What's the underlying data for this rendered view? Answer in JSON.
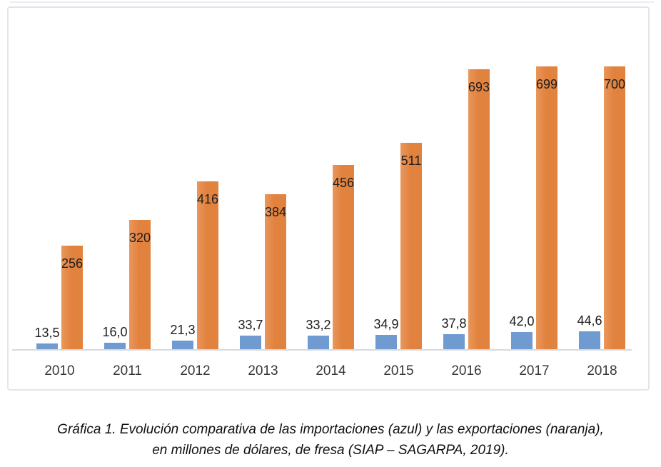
{
  "chart_data": {
    "type": "bar",
    "title": "",
    "xlabel": "",
    "ylabel": "",
    "categories": [
      "2010",
      "2011",
      "2012",
      "2013",
      "2014",
      "2015",
      "2016",
      "2017",
      "2018"
    ],
    "series": [
      {
        "name": "importaciones",
        "color": "#6f9bd1",
        "values": [
          13.5,
          16.0,
          21.3,
          33.7,
          33.2,
          34.9,
          37.8,
          42.0,
          44.6
        ],
        "labels": [
          "13,5",
          "16,0",
          "21,3",
          "33,7",
          "33,2",
          "34,9",
          "37,8",
          "42,0",
          "44,6"
        ]
      },
      {
        "name": "exportaciones",
        "color": "#e2823f",
        "color_light": "#e9975c",
        "values": [
          256,
          320,
          416,
          384,
          456,
          511,
          693,
          699,
          700
        ],
        "labels": [
          "256",
          "320",
          "416",
          "384",
          "456",
          "511",
          "693",
          "699",
          "700"
        ]
      }
    ],
    "ylim": [
      0,
      742
    ],
    "grid": false,
    "legend": "none",
    "units": "millones de dólares"
  },
  "caption": {
    "line1": "Gráfica 1. Evolución comparativa de las importaciones (azul) y las exportaciones (naranja),",
    "line2": "en millones de dólares, de fresa (SIAP – SAGARPA, 2019)."
  }
}
